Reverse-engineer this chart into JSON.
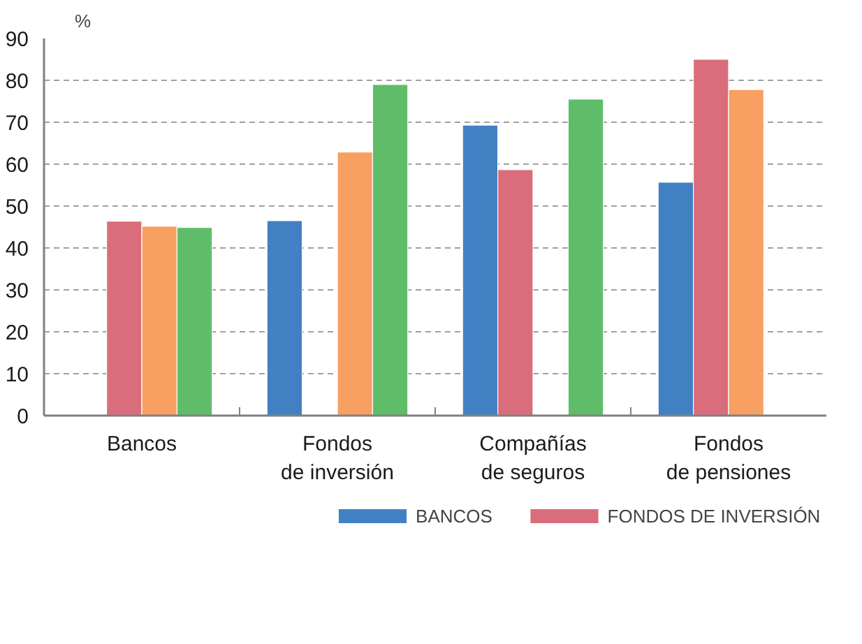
{
  "chart_data": {
    "type": "bar",
    "ylabel": "%",
    "categories": [
      "Bancos",
      "Fondos de inversión",
      "Compañías de seguros",
      "Fondos de pensiones"
    ],
    "series": [
      {
        "name": "BANCOS",
        "color": "#4280c4",
        "values": [
          null,
          46.5,
          69.3,
          55.7
        ]
      },
      {
        "name": "FONDOS DE INVERSIÓN",
        "color": "#d96d7c",
        "values": [
          46.4,
          null,
          58.7,
          85.0
        ]
      },
      {
        "color": "#f7a062",
        "values": [
          45.2,
          62.9,
          null,
          77.8
        ]
      },
      {
        "color": "#5fbd69",
        "values": [
          44.9,
          79.0,
          75.5,
          null
        ]
      }
    ],
    "ylim": [
      0,
      90
    ],
    "yticks": [
      0,
      10,
      20,
      30,
      40,
      50,
      60,
      70,
      80,
      90
    ],
    "grid": "y",
    "legend": "bottom"
  }
}
